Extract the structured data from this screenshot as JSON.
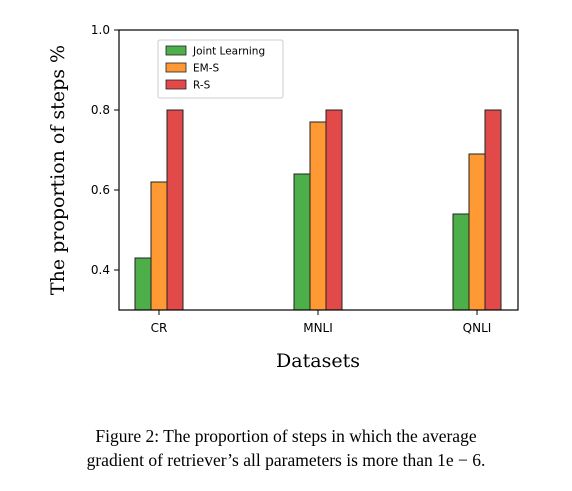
{
  "chart_data": {
    "type": "bar",
    "categories": [
      "CR",
      "MNLI",
      "QNLI"
    ],
    "series": [
      {
        "name": "Joint Learning",
        "values": [
          0.43,
          0.64,
          0.54
        ],
        "color": "#4daf4a"
      },
      {
        "name": "EM-S",
        "values": [
          0.62,
          0.77,
          0.69
        ],
        "color": "#ff9933"
      },
      {
        "name": "R-S",
        "values": [
          0.8,
          0.8,
          0.8
        ],
        "color": "#e24a4a"
      }
    ],
    "xlabel": "Datasets",
    "ylabel": "The proportion of steps %",
    "ylim": [
      0.3,
      1.0
    ],
    "yticks": [
      0.4,
      0.6,
      0.8,
      1.0
    ],
    "ytick_labels": [
      "0.4",
      "0.6",
      "0.8",
      "1.0"
    ],
    "legend_position": "top-left",
    "grid": false
  },
  "caption": {
    "line1": "Figure 2: The proportion of steps in which the average",
    "line2": "gradient of retriever’s all parameters is more than 1e − 6."
  }
}
